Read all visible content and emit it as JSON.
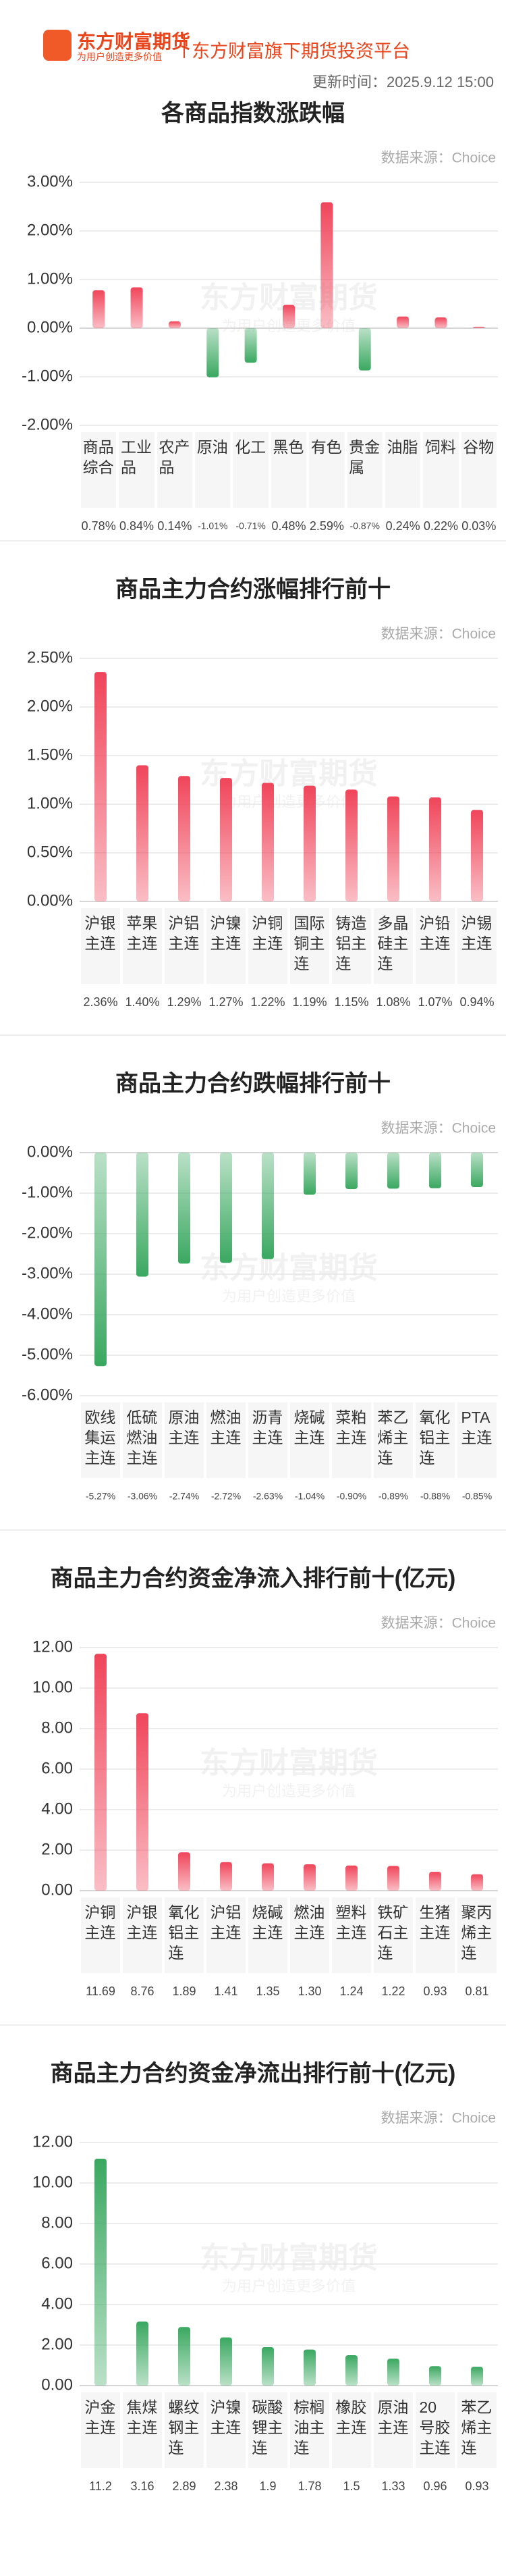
{
  "header": {
    "brand": "东方财富期货",
    "slogan": "为用户创造更多价值",
    "platform": "东方财富旗下期货投资平台",
    "update_time": "更新时间：2025.9.12 15:00"
  },
  "chart_data": [
    {
      "type": "bar",
      "title": "各商品指数涨跌幅",
      "source": "数据来源：Choice",
      "categories": [
        "商品综合",
        "工业品",
        "农产品",
        "原油",
        "化工",
        "黑色",
        "有色",
        "贵金属",
        "油脂",
        "饲料",
        "谷物"
      ],
      "values": [
        0.78,
        0.84,
        0.14,
        -1.01,
        -0.71,
        0.48,
        2.59,
        -0.87,
        0.24,
        0.22,
        0.03
      ],
      "value_labels": [
        "0.78%",
        "0.84%",
        "0.14%",
        "-1.01%",
        "-0.71%",
        "0.48%",
        "2.59%",
        "-0.87%",
        "0.24%",
        "0.22%",
        "0.03%"
      ],
      "color": "#f0455a",
      "negative_color": "#3aa860",
      "ylim": [
        -2,
        3
      ],
      "yticks": [
        {
          "value": 3,
          "label": "3.00%"
        },
        {
          "value": 2,
          "label": "2.00%"
        },
        {
          "value": 1,
          "label": "1.00%"
        },
        {
          "value": 0,
          "label": "0.00%"
        },
        {
          "value": -1,
          "label": "-1.00%"
        },
        {
          "value": -2,
          "label": "-2.00%"
        }
      ],
      "grid": true
    },
    {
      "type": "bar",
      "title": "商品主力合约涨幅排行前十",
      "source": "数据来源：Choice",
      "categories": [
        "沪银主连",
        "苹果主连",
        "沪铝主连",
        "沪镍主连",
        "沪铜主连",
        "国际铜主连",
        "铸造铝主连",
        "多晶硅主连",
        "沪铅主连",
        "沪锡主连"
      ],
      "values": [
        2.36,
        1.4,
        1.29,
        1.27,
        1.22,
        1.19,
        1.15,
        1.08,
        1.07,
        0.94
      ],
      "value_labels": [
        "2.36%",
        "1.40%",
        "1.29%",
        "1.27%",
        "1.22%",
        "1.19%",
        "1.15%",
        "1.08%",
        "1.07%",
        "0.94%"
      ],
      "color": "#f0455a",
      "negative_color": "#3aa860",
      "ylim": [
        0,
        2.5
      ],
      "yticks": [
        {
          "value": 2.5,
          "label": "2.50%"
        },
        {
          "value": 2,
          "label": "2.00%"
        },
        {
          "value": 1.5,
          "label": "1.50%"
        },
        {
          "value": 1,
          "label": "1.00%"
        },
        {
          "value": 0.5,
          "label": "0.50%"
        },
        {
          "value": 0,
          "label": "0.00%"
        }
      ],
      "grid": true
    },
    {
      "type": "bar",
      "title": "商品主力合约跌幅排行前十",
      "source": "数据来源：Choice",
      "categories": [
        "欧线集运主连",
        "低硫燃油主连",
        "原油主连",
        "燃油主连",
        "沥青主连",
        "烧碱主连",
        "菜粕主连",
        "苯乙烯主连",
        "氧化铝主连",
        "PTA主连"
      ],
      "values": [
        -5.27,
        -3.06,
        -2.74,
        -2.72,
        -2.63,
        -1.04,
        -0.9,
        -0.89,
        -0.88,
        -0.85
      ],
      "value_labels": [
        "-5.27%",
        "-3.06%",
        "-2.74%",
        "-2.72%",
        "-2.63%",
        "-1.04%",
        "-0.90%",
        "-0.89%",
        "-0.88%",
        "-0.85%"
      ],
      "color": "#f0455a",
      "negative_color": "#3aa860",
      "ylim": [
        -6,
        0
      ],
      "yticks": [
        {
          "value": 0,
          "label": "0.00%"
        },
        {
          "value": -1,
          "label": "-1.00%"
        },
        {
          "value": -2,
          "label": "-2.00%"
        },
        {
          "value": -3,
          "label": "-3.00%"
        },
        {
          "value": -4,
          "label": "-4.00%"
        },
        {
          "value": -5,
          "label": "-5.00%"
        },
        {
          "value": -6,
          "label": "-6.00%"
        }
      ],
      "grid": true
    },
    {
      "type": "bar",
      "title": "商品主力合约资金净流入排行前十(亿元)",
      "source": "数据来源：Choice",
      "categories": [
        "沪铜主连",
        "沪银主连",
        "氧化铝主连",
        "沪铝主连",
        "烧碱主连",
        "燃油主连",
        "塑料主连",
        "铁矿石主连",
        "生猪主连",
        "聚丙烯主连"
      ],
      "values": [
        11.69,
        8.76,
        1.89,
        1.41,
        1.35,
        1.3,
        1.24,
        1.22,
        0.93,
        0.81
      ],
      "value_labels": [
        "11.69",
        "8.76",
        "1.89",
        "1.41",
        "1.35",
        "1.30",
        "1.24",
        "1.22",
        "0.93",
        "0.81"
      ],
      "color": "#f0455a",
      "ylim": [
        0,
        12
      ],
      "yticks": [
        {
          "value": 12,
          "label": "12.00"
        },
        {
          "value": 10,
          "label": "10.00"
        },
        {
          "value": 8,
          "label": "8.00"
        },
        {
          "value": 6,
          "label": "6.00"
        },
        {
          "value": 4,
          "label": "4.00"
        },
        {
          "value": 2,
          "label": "2.00"
        },
        {
          "value": 0,
          "label": "0.00"
        }
      ],
      "grid": true
    },
    {
      "type": "bar",
      "title": "商品主力合约资金净流出排行前十(亿元)",
      "source": "数据来源：Choice",
      "categories": [
        "沪金主连",
        "焦煤主连",
        "螺纹钢主连",
        "沪镍主连",
        "碳酸锂主连",
        "棕榈油主连",
        "橡胶主连",
        "原油主连",
        "20号胶主连",
        "苯乙烯主连"
      ],
      "values": [
        11.2,
        3.16,
        2.89,
        2.38,
        1.9,
        1.78,
        1.5,
        1.33,
        0.96,
        0.93
      ],
      "color": "#3aa860",
      "ylim": [
        0,
        12
      ],
      "yticks": [
        {
          "value": 12,
          "label": "12.00"
        },
        {
          "value": 10,
          "label": "10.00"
        },
        {
          "value": 8,
          "label": "8.00"
        },
        {
          "value": 6,
          "label": "6.00"
        },
        {
          "value": 4,
          "label": "4.00"
        },
        {
          "value": 2,
          "label": "2.00"
        },
        {
          "value": 0,
          "label": "0.00"
        }
      ],
      "grid": true
    }
  ]
}
